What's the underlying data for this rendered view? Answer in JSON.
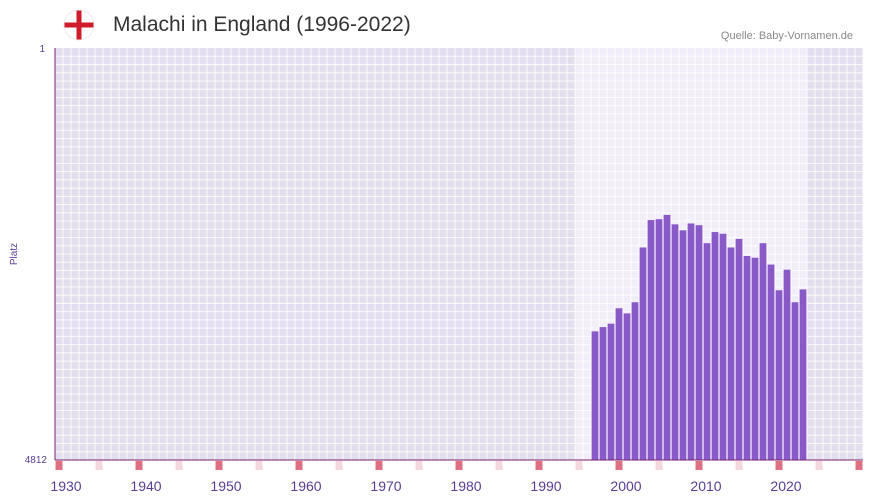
{
  "header": {
    "title": "Malachi in England (1996-2022)",
    "source": "Quelle: Baby-Vornamen.de",
    "flag_icon": "england-flag-icon"
  },
  "colors": {
    "bar": "#8a59c8",
    "axis_text": "#5a3e96",
    "plot_bg": "#e4dfee",
    "highlight_bg": "#f2eef9",
    "grid": "#ffffff",
    "axis_line": "#7a1f6e",
    "marker_strong": "#e0707f",
    "marker_light": "#f6d7de",
    "flag_red": "#cf1b2b"
  },
  "chart_data": {
    "type": "bar",
    "title": "Malachi in England (1996-2022)",
    "ylabel": "Platz",
    "xlabel": "",
    "y_axis_reversed": true,
    "ylim": [
      1,
      4812
    ],
    "y_tick_labels": [
      "1",
      "4812"
    ],
    "xlim": [
      1929,
      2029
    ],
    "x_tick_labels": [
      "1930",
      "1940",
      "1950",
      "1960",
      "1970",
      "1980",
      "1990",
      "2000",
      "2010",
      "2020"
    ],
    "highlight_range": [
      1996,
      2022
    ],
    "years": [
      1996,
      1997,
      1998,
      1999,
      2000,
      2001,
      2002,
      2003,
      2004,
      2005,
      2006,
      2007,
      2008,
      2009,
      2010,
      2011,
      2012,
      2013,
      2014,
      2015,
      2016,
      2017,
      2018,
      2019,
      2020,
      2021,
      2022
    ],
    "values": [
      3310,
      3260,
      3220,
      3040,
      3100,
      2970,
      2330,
      2010,
      2000,
      1950,
      2060,
      2130,
      2050,
      2070,
      2280,
      2150,
      2170,
      2330,
      2230,
      2430,
      2450,
      2280,
      2530,
      2830,
      2590,
      2970,
      2820
    ]
  }
}
